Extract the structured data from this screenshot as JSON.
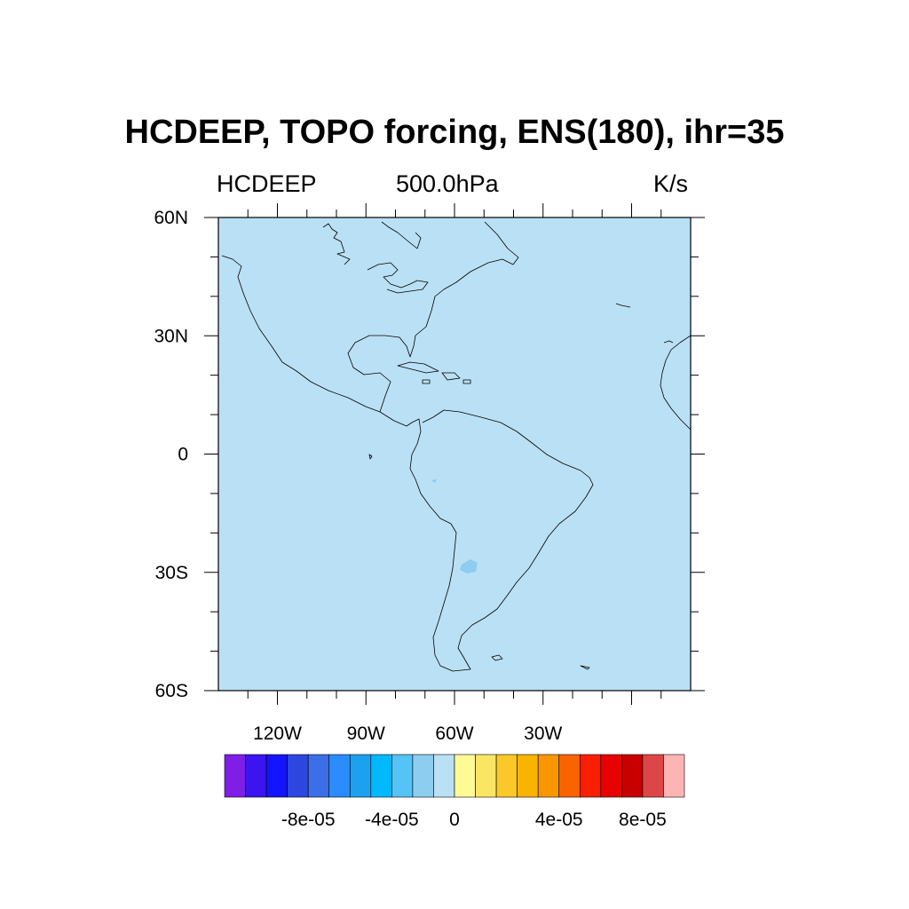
{
  "title": "HCDEEP, TOPO forcing, ENS(180), ihr=35",
  "subtitles": {
    "left": "HCDEEP",
    "center": "500.0hPa",
    "right": "K/s"
  },
  "map": {
    "lon_range": [
      -140,
      20
    ],
    "lat_range": [
      -60,
      60
    ],
    "background_color": "#bae0f5",
    "coastline_color": "#000000",
    "lat_ticks": [
      {
        "value": 60,
        "label": "60N"
      },
      {
        "value": 30,
        "label": "30N"
      },
      {
        "value": 0,
        "label": "0"
      },
      {
        "value": -30,
        "label": "30S"
      },
      {
        "value": -60,
        "label": "60S"
      }
    ],
    "lon_ticks": [
      {
        "value": -120,
        "label": "120W"
      },
      {
        "value": -90,
        "label": "90W"
      },
      {
        "value": -60,
        "label": "60W"
      },
      {
        "value": -30,
        "label": "30W"
      }
    ]
  },
  "colorbar": {
    "colors": [
      "#7f1ee6",
      "#3c14f0",
      "#1414ff",
      "#2e46e0",
      "#3c6ee8",
      "#2a8cff",
      "#1ea0f0",
      "#00b9ff",
      "#55c3f5",
      "#8ccdf0",
      "#bae0f5",
      "#fffa96",
      "#fae664",
      "#fac828",
      "#fab400",
      "#fa9600",
      "#fa6400",
      "#fa1e00",
      "#e60000",
      "#c80000",
      "#dc4646",
      "#ffb4b4"
    ],
    "labels": [
      {
        "boundary": 2,
        "text": "-8e-05"
      },
      {
        "boundary": 4,
        "text": "-4e-05"
      },
      {
        "boundary": 6,
        "text": "0"
      },
      {
        "boundary": 8,
        "text": "4e-05"
      },
      {
        "boundary": 10,
        "text": "8e-05"
      }
    ]
  }
}
